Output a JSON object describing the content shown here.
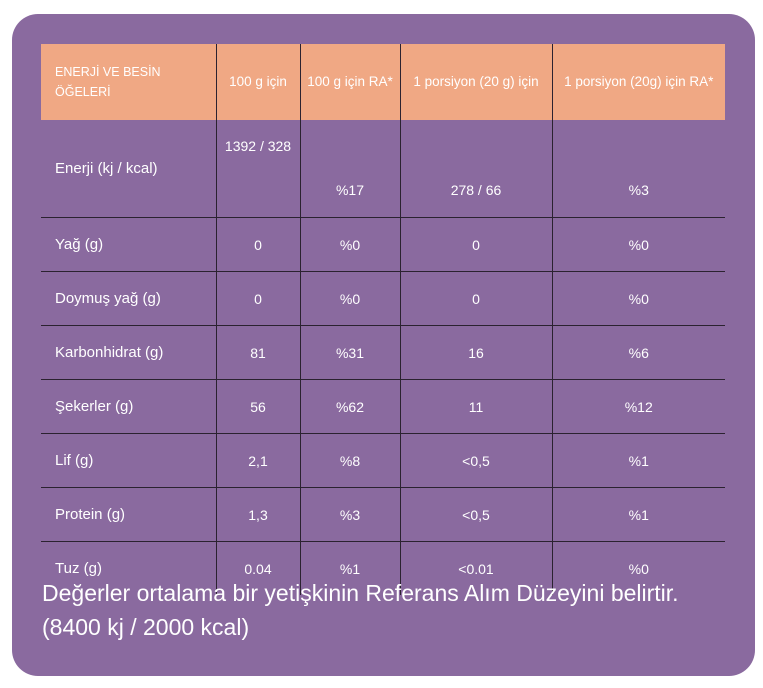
{
  "table": {
    "headers": [
      "ENERJİ VE BESİN ÖĞELERİ",
      "100 g için",
      "100 g için RA*",
      "1 porsiyon (20 g) için",
      "1 porsiyon (20g) için RA*"
    ],
    "rows": [
      {
        "name": "Enerji (kj / kcal)",
        "per100": "1392 / 328",
        "ra100": "%17",
        "portion": "278 / 66",
        "raPortion": "%3"
      },
      {
        "name": "Yağ (g)",
        "per100": "0",
        "ra100": "%0",
        "portion": "0",
        "raPortion": "%0"
      },
      {
        "name": "Doymuş yağ (g)",
        "per100": "0",
        "ra100": "%0",
        "portion": "0",
        "raPortion": "%0"
      },
      {
        "name": "Karbonhidrat (g)",
        "per100": "81",
        "ra100": "%31",
        "portion": "16",
        "raPortion": "%6"
      },
      {
        "name": "Şekerler (g)",
        "per100": "56",
        "ra100": "%62",
        "portion": "11",
        "raPortion": "%12"
      },
      {
        "name": "Lif (g)",
        "per100": "2,1",
        "ra100": "%8",
        "portion": "<0,5",
        "raPortion": "%1"
      },
      {
        "name": "Protein (g)",
        "per100": "1,3",
        "ra100": "%3",
        "portion": "<0,5",
        "raPortion": "%1"
      },
      {
        "name": "Tuz (g)",
        "per100": "0.04",
        "ra100": "%1",
        "portion": "<0.01",
        "raPortion": "%0"
      }
    ]
  },
  "footnote": "Değerler ortalama bir yetişkinin Referans Alım Düzeyini belirtir. (8400 kj / 2000 kcal)",
  "colors": {
    "card": "#8a6a9f",
    "header": "#f0a884",
    "text": "#ffffff",
    "grid": "#2b2230"
  }
}
